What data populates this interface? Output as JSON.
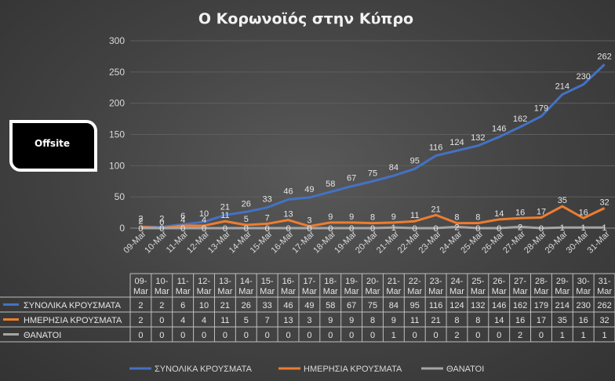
{
  "chart_data": {
    "type": "line",
    "title": "Ο Κορωνοϊός στην Κύπρο",
    "categories": [
      "09-Mar",
      "10-Mar",
      "11-Mar",
      "12-Mar",
      "13-Mar",
      "14-Mar",
      "15-Mar",
      "16-Mar",
      "17-Mar",
      "18-Mar",
      "19-Mar",
      "20-Mar",
      "21-Mar",
      "22-Mar",
      "23-Mar",
      "24-Mar",
      "25-Mar",
      "26-Mar",
      "27-Mar",
      "28-Mar",
      "29-Mar",
      "30-Mar",
      "31-Mar"
    ],
    "ylim": [
      0,
      300
    ],
    "yticks": [
      0,
      50,
      100,
      150,
      200,
      250,
      300
    ],
    "grid": true,
    "legend_position": "bottom",
    "series": [
      {
        "name": "ΣΥΝΟΛΙΚΑ ΚΡΟΥΣΜΑΤΑ",
        "color": "#4472c4",
        "values": [
          2,
          2,
          6,
          10,
          21,
          26,
          33,
          46,
          49,
          58,
          67,
          75,
          84,
          95,
          116,
          124,
          132,
          146,
          162,
          179,
          214,
          230,
          262
        ]
      },
      {
        "name": "ΗΜΕΡΗΣΙΑ ΚΡΟΥΣΜΑΤΑ",
        "color": "#ed7d31",
        "values": [
          2,
          0,
          4,
          4,
          11,
          5,
          7,
          13,
          3,
          9,
          9,
          8,
          9,
          11,
          21,
          8,
          8,
          14,
          16,
          17,
          35,
          16,
          32
        ]
      },
      {
        "name": "ΘΑΝΑΤΟΙ",
        "color": "#a5a5a5",
        "values": [
          0,
          0,
          0,
          0,
          0,
          0,
          0,
          0,
          0,
          0,
          0,
          0,
          1,
          0,
          0,
          2,
          0,
          0,
          2,
          0,
          1,
          1,
          1
        ]
      }
    ]
  },
  "logo": {
    "text": "Offsite"
  }
}
